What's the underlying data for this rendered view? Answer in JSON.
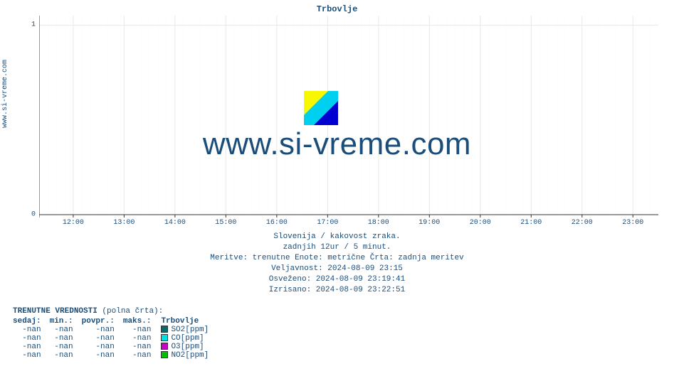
{
  "site_label": "www.si-vreme.com",
  "title": "Trbovlje",
  "watermark": "www.si-vreme.com",
  "chart": {
    "type": "line",
    "background_color": "#ffffff",
    "grid_color": "#e8e8e8",
    "axis_color": "#333333",
    "arrow_color": "#cc0000",
    "ylim": [
      0,
      1.05
    ],
    "yticks": [
      0,
      1
    ],
    "ytick_labels": [
      "0",
      "1"
    ],
    "xlim_hours": [
      11.33,
      23.5
    ],
    "xticks_hours": [
      12,
      13,
      14,
      15,
      16,
      17,
      18,
      19,
      20,
      21,
      22,
      23
    ],
    "xtick_labels": [
      "12:00",
      "13:00",
      "14:00",
      "15:00",
      "16:00",
      "17:00",
      "18:00",
      "19:00",
      "20:00",
      "21:00",
      "22:00",
      "23:00"
    ],
    "text_color": "#1a4d7a",
    "mono_font": "Courier New",
    "tick_fontsize": 10,
    "title_fontsize": 12
  },
  "meta": {
    "line1": "Slovenija / kakovost zraka.",
    "line2": "zadnjih 12ur / 5 minut.",
    "line3": "Meritve: trenutne  Enote: metrične  Črta: zadnja meritev",
    "line4": "Veljavnost: 2024-08-09 23:15",
    "line5": "Osveženo: 2024-08-09 23:19:41",
    "line6": "Izrisano: 2024-08-09 23:22:51"
  },
  "legend": {
    "title_bold": "TRENUTNE VREDNOSTI",
    "title_rest": " (polna črta):",
    "columns": [
      "sedaj:",
      "min.:",
      "povpr.:",
      "maks.:"
    ],
    "location": "Trbovlje",
    "rows": [
      {
        "sedaj": "-nan",
        "min": "-nan",
        "povpr": "-nan",
        "maks": "-nan",
        "color": "#0b6b6b",
        "label": "SO2[ppm]"
      },
      {
        "sedaj": "-nan",
        "min": "-nan",
        "povpr": "-nan",
        "maks": "-nan",
        "color": "#00e0e0",
        "label": "CO[ppm]"
      },
      {
        "sedaj": "-nan",
        "min": "-nan",
        "povpr": "-nan",
        "maks": "-nan",
        "color": "#cc00cc",
        "label": "O3[ppm]"
      },
      {
        "sedaj": "-nan",
        "min": "-nan",
        "povpr": "-nan",
        "maks": "-nan",
        "color": "#00c000",
        "label": "NO2[ppm]"
      }
    ]
  },
  "logo": {
    "yellow": "#f7f700",
    "cyan": "#00d0f0",
    "blue": "#0000d0"
  }
}
